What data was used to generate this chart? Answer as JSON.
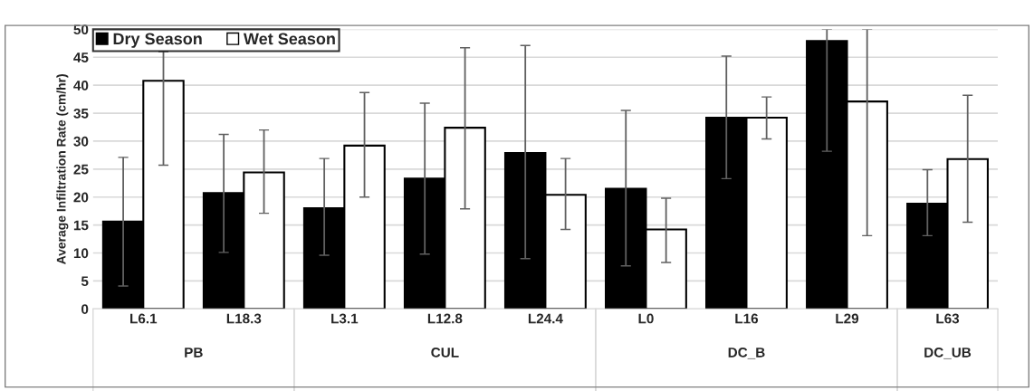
{
  "chart_data": {
    "type": "bar",
    "ylabel": "Average Infiltration Rate (cm/hr)",
    "categories": [
      "L6.1",
      "L18.3",
      "L3.1",
      "L12.8",
      "L24.4",
      "L0",
      "L16",
      "L29",
      "L63"
    ],
    "series": [
      {
        "name": "Dry Season",
        "color": "#000000",
        "values": [
          15.6,
          20.7,
          18.0,
          23.3,
          27.9,
          21.5,
          34.2,
          47.9,
          18.8
        ],
        "errors": [
          [
            4.1,
            27.1
          ],
          [
            10.1,
            31.2
          ],
          [
            9.6,
            26.9
          ],
          [
            9.8,
            36.8
          ],
          [
            9.0,
            47.1
          ],
          [
            7.7,
            35.5
          ],
          [
            23.3,
            45.2
          ],
          [
            28.2,
            50
          ],
          [
            13.1,
            24.9
          ]
        ]
      },
      {
        "name": "Wet Season",
        "color": "#ffffff",
        "values": [
          40.8,
          24.4,
          29.2,
          32.4,
          20.4,
          14.2,
          34.2,
          37.1,
          26.8
        ],
        "errors": [
          [
            25.7,
            46
          ],
          [
            17.1,
            32.0
          ],
          [
            20.0,
            38.7
          ],
          [
            17.9,
            46.7
          ],
          [
            14.2,
            26.9
          ],
          [
            8.3,
            19.8
          ],
          [
            30.4,
            37.9
          ],
          [
            13.1,
            50
          ],
          [
            15.5,
            38.2
          ]
        ]
      }
    ],
    "annotations": [
      "PB",
      "CUL",
      "DC_B",
      "DC_UB"
    ],
    "ylim": [
      0,
      50
    ],
    "yticks": [
      0,
      5,
      10,
      15,
      20,
      25,
      30,
      35,
      40,
      45,
      50
    ],
    "grid": "y",
    "legend": "top left"
  }
}
